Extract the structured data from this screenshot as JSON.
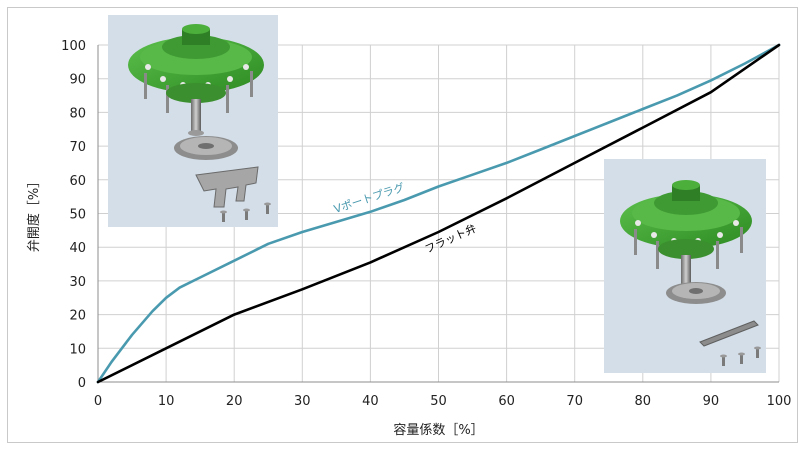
{
  "chart_data": {
    "type": "line",
    "xlabel": "容量係数［%］",
    "ylabel": "弁開度［%］",
    "xlim": [
      0,
      100
    ],
    "ylim": [
      0,
      100
    ],
    "xticks": [
      0,
      10,
      20,
      30,
      40,
      50,
      60,
      70,
      80,
      90,
      100
    ],
    "yticks": [
      0,
      10,
      20,
      30,
      40,
      50,
      60,
      70,
      80,
      90,
      100
    ],
    "grid": true,
    "series": [
      {
        "name": "Vポートプラグ",
        "color": "#4a9aaf",
        "x": [
          0,
          2,
          5,
          8,
          10,
          12,
          15,
          20,
          25,
          30,
          35,
          40,
          45,
          50,
          55,
          60,
          65,
          70,
          75,
          80,
          85,
          90,
          95,
          100
        ],
        "y": [
          0,
          6,
          14,
          21,
          25,
          28,
          31,
          36,
          41,
          44.5,
          47.5,
          50.5,
          54,
          58,
          61.5,
          65,
          69,
          73,
          77,
          81,
          85,
          89.5,
          94.5,
          100
        ]
      },
      {
        "name": "フラット弁",
        "color": "#000000",
        "x": [
          0,
          10,
          20,
          30,
          40,
          50,
          60,
          70,
          80,
          90,
          100
        ],
        "y": [
          0,
          10,
          20,
          27.5,
          35.5,
          44.5,
          54.5,
          65,
          75.5,
          86,
          100
        ]
      }
    ]
  },
  "images": [
    {
      "name": "v-port-plug-valve-exploded"
    },
    {
      "name": "flat-valve-exploded"
    }
  ]
}
